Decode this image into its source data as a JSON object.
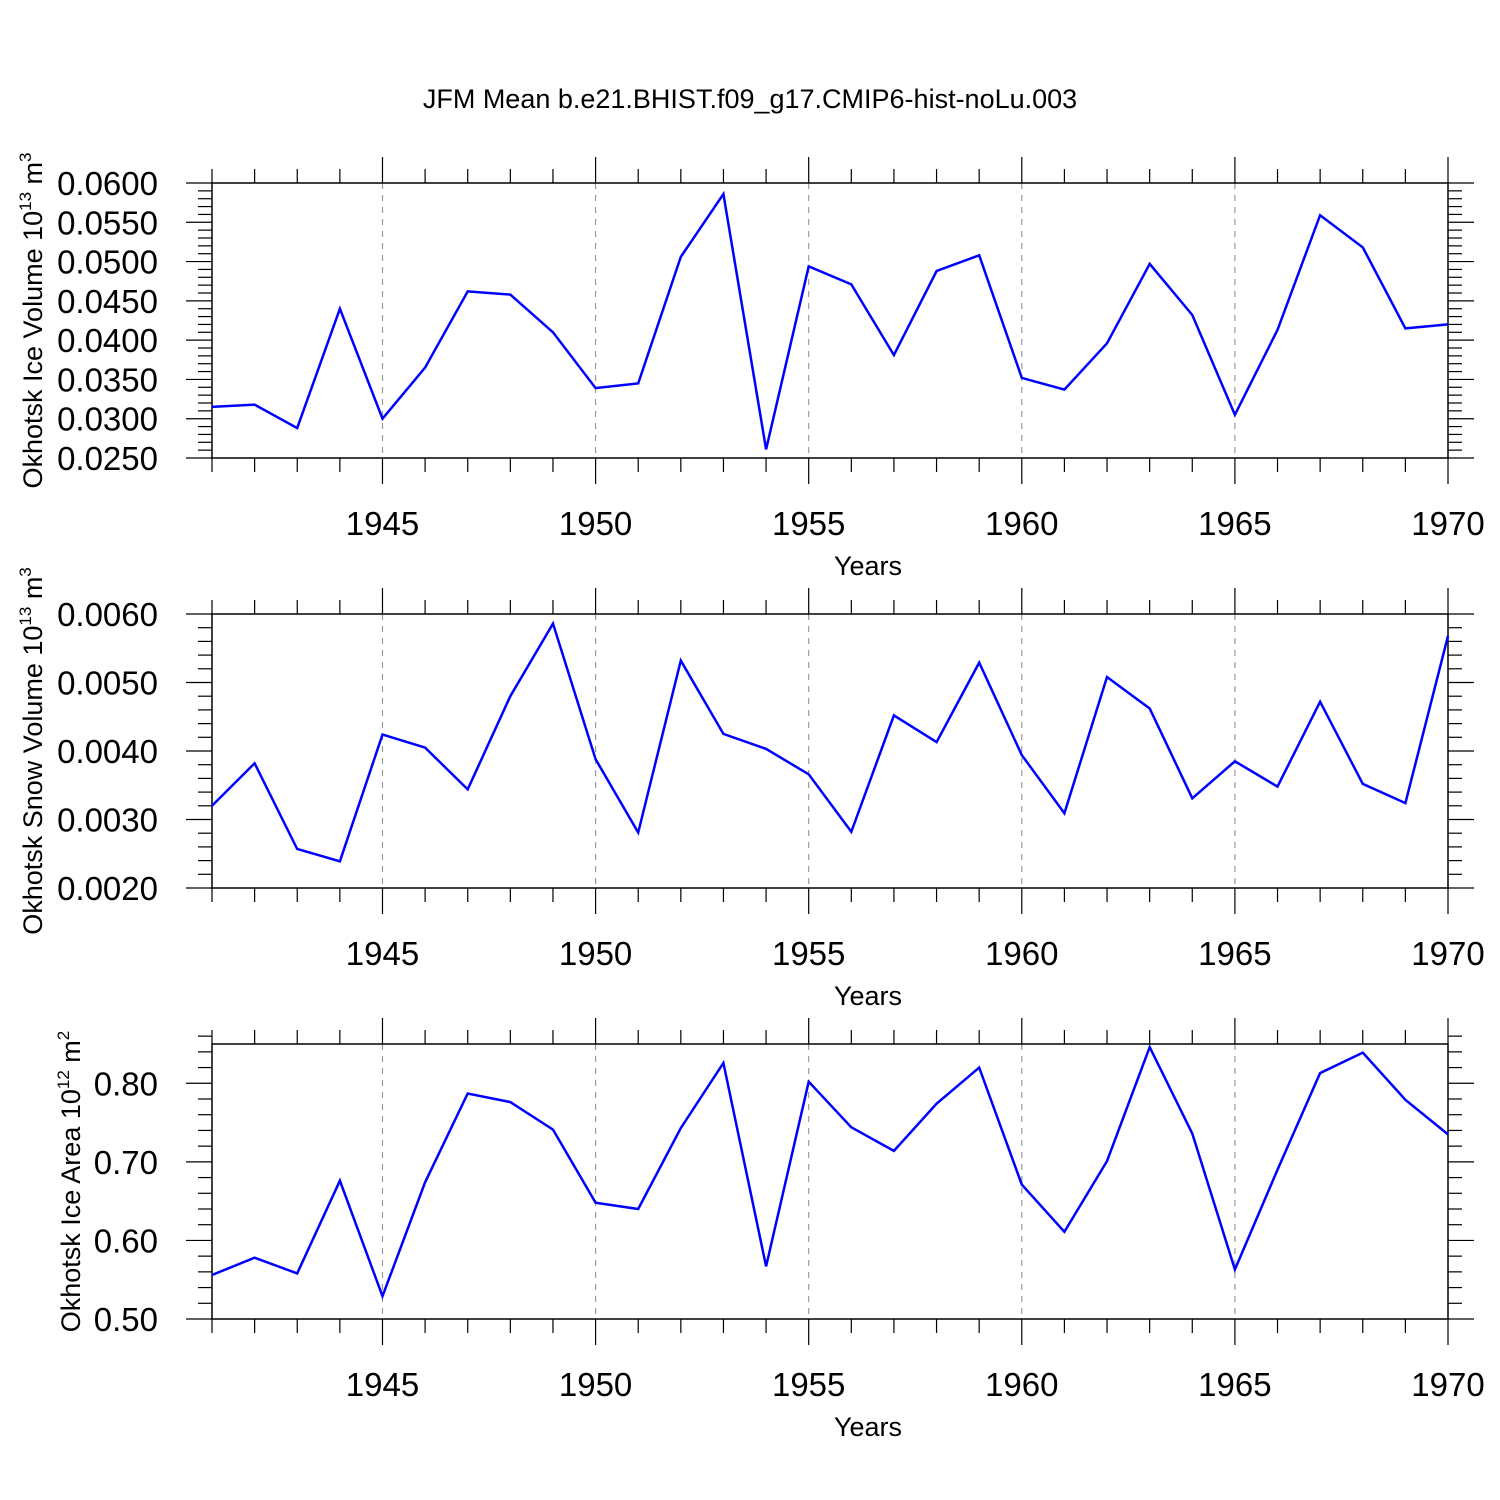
{
  "figure": {
    "title": "JFM Mean b.e21.BHIST.f09_g17.CMIP6-hist-noLu.003"
  },
  "chart_data": [
    {
      "type": "line",
      "ylabel": "Okhotsk Ice Volume 10",
      "ylabel_exp": "13",
      "ylabel_unit": " m",
      "ylabel_unit_exp": "3",
      "xlabel": "Years",
      "xlim": [
        1941,
        1970
      ],
      "ylim": [
        0.025,
        0.06
      ],
      "x_ticks": [
        1945,
        1950,
        1955,
        1960,
        1965,
        1970
      ],
      "x_tick_labels": [
        "1945",
        "1950",
        "1955",
        "1960",
        "1965",
        "1970"
      ],
      "y_ticks": [
        0.025,
        0.03,
        0.035,
        0.04,
        0.045,
        0.05,
        0.055,
        0.06
      ],
      "y_tick_labels": [
        "0.0250",
        "0.0300",
        "0.0350",
        "0.0400",
        "0.0450",
        "0.0500",
        "0.0550",
        "0.0600"
      ],
      "y_minor_step": 0.001,
      "grid": "dashed vertical at 1945, 1950, 1955, 1960, 1965",
      "series": [
        {
          "name": "Okhotsk Ice Volume",
          "color": "#0000ff",
          "x": [
            1941,
            1942,
            1943,
            1944,
            1945,
            1946,
            1947,
            1948,
            1949,
            1950,
            1951,
            1952,
            1953,
            1954,
            1955,
            1956,
            1957,
            1958,
            1959,
            1960,
            1961,
            1962,
            1963,
            1964,
            1965,
            1966,
            1967,
            1968,
            1969,
            1970
          ],
          "values": [
            0.0315,
            0.0318,
            0.0288,
            0.044,
            0.03,
            0.0365,
            0.0462,
            0.0458,
            0.041,
            0.0339,
            0.0345,
            0.0506,
            0.0586,
            0.0261,
            0.0494,
            0.0471,
            0.0381,
            0.0488,
            0.0508,
            0.0352,
            0.0337,
            0.0396,
            0.0497,
            0.0432,
            0.0305,
            0.0413,
            0.0559,
            0.0518,
            0.0415,
            0.042
          ]
        }
      ]
    },
    {
      "type": "line",
      "ylabel": "Okhotsk Snow Volume 10",
      "ylabel_exp": "13",
      "ylabel_unit": " m",
      "ylabel_unit_exp": "3",
      "xlabel": "Years",
      "xlim": [
        1941,
        1970
      ],
      "ylim": [
        0.002,
        0.006
      ],
      "x_ticks": [
        1945,
        1950,
        1955,
        1960,
        1965,
        1970
      ],
      "x_tick_labels": [
        "1945",
        "1950",
        "1955",
        "1960",
        "1965",
        "1970"
      ],
      "y_ticks": [
        0.002,
        0.003,
        0.004,
        0.005,
        0.006
      ],
      "y_tick_labels": [
        "0.0020",
        "0.0030",
        "0.0040",
        "0.0050",
        "0.0060"
      ],
      "y_minor_step": 0.0002,
      "grid": "dashed vertical at 1945, 1950, 1955, 1960, 1965",
      "series": [
        {
          "name": "Okhotsk Snow Volume",
          "color": "#0000ff",
          "x": [
            1941,
            1942,
            1943,
            1944,
            1945,
            1946,
            1947,
            1948,
            1949,
            1950,
            1951,
            1952,
            1953,
            1954,
            1955,
            1956,
            1957,
            1958,
            1959,
            1960,
            1961,
            1962,
            1963,
            1964,
            1965,
            1966,
            1967,
            1968,
            1969,
            1970
          ],
          "values": [
            0.0032,
            0.00382,
            0.00257,
            0.00239,
            0.00424,
            0.00405,
            0.00344,
            0.0048,
            0.00586,
            0.00388,
            0.00281,
            0.00532,
            0.00425,
            0.00403,
            0.00366,
            0.00282,
            0.00452,
            0.00413,
            0.00529,
            0.00394,
            0.00309,
            0.00508,
            0.00462,
            0.00331,
            0.00385,
            0.00348,
            0.00472,
            0.00352,
            0.00324,
            0.00568
          ]
        }
      ]
    },
    {
      "type": "line",
      "ylabel": "Okhotsk Ice Area 10",
      "ylabel_exp": "12",
      "ylabel_unit": " m",
      "ylabel_unit_exp": "2",
      "xlabel": "Years",
      "xlim": [
        1941,
        1970
      ],
      "ylim": [
        0.5,
        0.85
      ],
      "x_ticks": [
        1945,
        1950,
        1955,
        1960,
        1965,
        1970
      ],
      "x_tick_labels": [
        "1945",
        "1950",
        "1955",
        "1960",
        "1965",
        "1970"
      ],
      "y_ticks": [
        0.5,
        0.6,
        0.7,
        0.8
      ],
      "y_tick_labels": [
        "0.50",
        "0.60",
        "0.70",
        "0.80"
      ],
      "y_minor_step": 0.02,
      "grid": "dashed vertical at 1945, 1950, 1955, 1960, 1965",
      "series": [
        {
          "name": "Okhotsk Ice Area",
          "color": "#0000ff",
          "x": [
            1941,
            1942,
            1943,
            1944,
            1945,
            1946,
            1947,
            1948,
            1949,
            1950,
            1951,
            1952,
            1953,
            1954,
            1955,
            1956,
            1957,
            1958,
            1959,
            1960,
            1961,
            1962,
            1963,
            1964,
            1965,
            1966,
            1967,
            1968,
            1969,
            1970
          ],
          "values": [
            0.556,
            0.578,
            0.558,
            0.676,
            0.529,
            0.674,
            0.787,
            0.776,
            0.741,
            0.648,
            0.64,
            0.743,
            0.826,
            0.567,
            0.802,
            0.744,
            0.714,
            0.774,
            0.82,
            0.671,
            0.611,
            0.701,
            0.846,
            0.736,
            0.563,
            0.69,
            0.813,
            0.839,
            0.779,
            0.735
          ]
        }
      ]
    }
  ]
}
